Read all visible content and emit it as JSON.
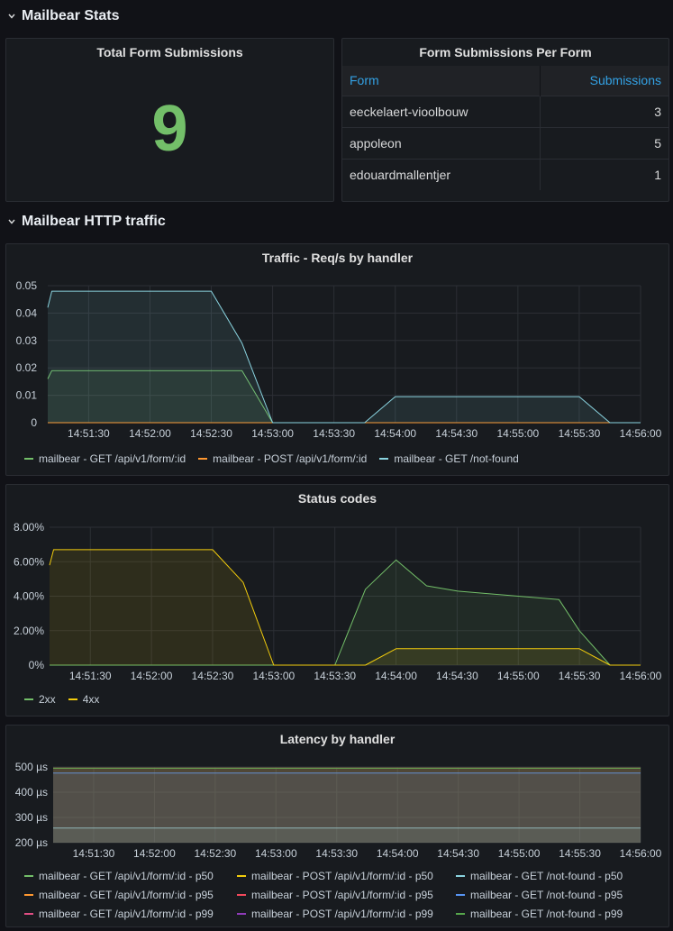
{
  "rows": {
    "stats": {
      "title": "Mailbear Stats"
    },
    "http": {
      "title": "Mailbear HTTP traffic"
    }
  },
  "total_panel": {
    "title": "Total Form Submissions",
    "value": "9",
    "value_color": "#73bf69"
  },
  "per_form_panel": {
    "title": "Form Submissions Per Form",
    "columns": [
      "Form",
      "Submissions"
    ],
    "rows": [
      {
        "form": "eeckelaert-vioolbouw",
        "submissions": "3"
      },
      {
        "form": "appoleon",
        "submissions": "5"
      },
      {
        "form": "edouardmallentjer",
        "submissions": "1"
      }
    ]
  },
  "colors": {
    "green": "#73bf69",
    "yellow": "#f2cc0c",
    "orange": "#ff9830",
    "blue": "#8ab8ff",
    "cyan": "#8ad4e0",
    "red": "#f2495c",
    "purple": "#a352cc"
  },
  "x_ticks": [
    "14:51:30",
    "14:52:00",
    "14:52:30",
    "14:53:00",
    "14:53:30",
    "14:54:00",
    "14:54:30",
    "14:55:00",
    "14:55:30",
    "14:56:00"
  ],
  "chart_data": [
    {
      "type": "area",
      "title": "Traffic - Req/s by handler",
      "y_ticks": [
        "0.05",
        "0.04",
        "0.03",
        "0.02",
        "0.01",
        "0"
      ],
      "ylim": [
        0,
        0.05
      ],
      "x_range": [
        "14:51:10",
        "14:56:00"
      ],
      "grid": true,
      "legend_placement": "bottom",
      "series": [
        {
          "name": "mailbear - GET /api/v1/form/:id",
          "color": "#73bf69",
          "x": [
            "14:51:10",
            "14:51:12",
            "14:51:30",
            "14:52:00",
            "14:52:30",
            "14:52:45",
            "14:53:00",
            "14:53:30",
            "14:53:45",
            "14:54:00",
            "14:54:30",
            "14:55:00",
            "14:55:30",
            "14:55:45",
            "14:56:00"
          ],
          "values": [
            0.016,
            0.019,
            0.019,
            0.019,
            0.019,
            0.019,
            0,
            0,
            0,
            0,
            0,
            0,
            0,
            0,
            0
          ]
        },
        {
          "name": "mailbear - POST /api/v1/form/:id",
          "color": "#ff9830",
          "x": [
            "14:51:10",
            "14:51:30",
            "14:52:00",
            "14:52:30",
            "14:53:00",
            "14:53:30",
            "14:54:00",
            "14:54:30",
            "14:55:00",
            "14:55:30",
            "14:56:00"
          ],
          "values": [
            0,
            0,
            0,
            0,
            0,
            0,
            0,
            0,
            0,
            0,
            0
          ]
        },
        {
          "name": "mailbear - GET /not-found",
          "color": "#8ad4e0",
          "x": [
            "14:51:10",
            "14:51:12",
            "14:51:30",
            "14:52:00",
            "14:52:30",
            "14:52:45",
            "14:53:00",
            "14:53:30",
            "14:53:45",
            "14:54:00",
            "14:54:30",
            "14:55:00",
            "14:55:30",
            "14:55:45",
            "14:56:00"
          ],
          "values": [
            0.042,
            0.048,
            0.048,
            0.048,
            0.048,
            0.029,
            0,
            0,
            0,
            0.0095,
            0.0095,
            0.0095,
            0.0095,
            0,
            0
          ]
        }
      ]
    },
    {
      "type": "area",
      "title": "Status codes",
      "y_ticks": [
        "8.00%",
        "6.00%",
        "4.00%",
        "2.00%",
        "0%"
      ],
      "ylim": [
        0,
        8
      ],
      "y_unit": "%",
      "x_range": [
        "14:51:10",
        "14:56:00"
      ],
      "grid": true,
      "legend_placement": "bottom",
      "series": [
        {
          "name": "2xx",
          "color": "#73bf69",
          "x": [
            "14:51:10",
            "14:51:30",
            "14:52:00",
            "14:52:30",
            "14:53:00",
            "14:53:30",
            "14:53:45",
            "14:54:00",
            "14:54:15",
            "14:54:30",
            "14:55:00",
            "14:55:20",
            "14:55:30",
            "14:55:45",
            "14:56:00"
          ],
          "values": [
            0,
            0,
            0,
            0,
            0,
            0,
            4.4,
            6.1,
            4.6,
            4.3,
            4.0,
            3.8,
            2.0,
            0,
            0
          ]
        },
        {
          "name": "4xx",
          "color": "#f2cc0c",
          "x": [
            "14:51:10",
            "14:51:12",
            "14:51:30",
            "14:52:00",
            "14:52:30",
            "14:52:45",
            "14:53:00",
            "14:53:30",
            "14:53:45",
            "14:54:00",
            "14:54:30",
            "14:55:00",
            "14:55:30",
            "14:55:45",
            "14:56:00"
          ],
          "values": [
            5.8,
            6.7,
            6.7,
            6.7,
            6.7,
            4.8,
            0,
            0,
            0,
            0.95,
            0.95,
            0.95,
            0.95,
            0,
            0
          ]
        }
      ]
    },
    {
      "type": "area",
      "title": "Latency by handler",
      "y_ticks": [
        "500 µs",
        "400 µs",
        "300 µs",
        "200 µs"
      ],
      "ylim": [
        190,
        500
      ],
      "y_unit": "µs",
      "x_range": [
        "14:51:10",
        "14:56:00"
      ],
      "grid": true,
      "legend_placement": "bottom",
      "series": [
        {
          "name": "mailbear - GET /api/v1/form/:id - p50",
          "color": "#73bf69",
          "x": [
            "14:51:10",
            "14:56:00"
          ],
          "values": [
            495,
            495
          ]
        },
        {
          "name": "mailbear - POST /api/v1/form/:id - p50",
          "color": "#f2cc0c",
          "x": [],
          "values": []
        },
        {
          "name": "mailbear - GET /not-found - p50",
          "color": "#8ad4e0",
          "x": [
            "14:51:10",
            "14:56:00"
          ],
          "values": [
            250,
            250
          ]
        },
        {
          "name": "mailbear - GET /api/v1/form/:id - p95",
          "color": "#ff9830",
          "x": [
            "14:51:10",
            "14:56:00"
          ],
          "values": [
            495,
            495
          ]
        },
        {
          "name": "mailbear - POST /api/v1/form/:id - p95",
          "color": "#f2495c",
          "x": [],
          "values": []
        },
        {
          "name": "mailbear - GET /not-found - p95",
          "color": "#5794f2",
          "x": [
            "14:51:10",
            "14:56:00"
          ],
          "values": [
            475,
            475
          ]
        },
        {
          "name": "mailbear - GET /api/v1/form/:id - p99",
          "color": "#e04e83",
          "x": [
            "14:51:10",
            "14:56:00"
          ],
          "values": [
            495,
            495
          ]
        },
        {
          "name": "mailbear - POST /api/v1/form/:id - p99",
          "color": "#8f3bb8",
          "x": [],
          "values": []
        },
        {
          "name": "mailbear - GET /not-found - p99",
          "color": "#56a64b",
          "x": [
            "14:51:10",
            "14:56:00"
          ],
          "values": [
            495,
            495
          ]
        }
      ]
    }
  ]
}
